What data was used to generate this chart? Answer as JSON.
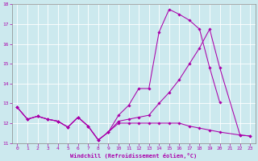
{
  "xlabel": "Windchill (Refroidissement éolien,°C)",
  "bg_color": "#cce9ee",
  "line_color": "#aa00aa",
  "xlim": [
    -0.5,
    23.5
  ],
  "ylim": [
    11,
    18
  ],
  "xticks": [
    0,
    1,
    2,
    3,
    4,
    5,
    6,
    7,
    8,
    9,
    10,
    11,
    12,
    13,
    14,
    15,
    16,
    17,
    18,
    19,
    20,
    21,
    22,
    23
  ],
  "yticks": [
    11,
    12,
    13,
    14,
    15,
    16,
    17,
    18
  ],
  "series": [
    {
      "x": [
        0,
        1,
        2,
        3,
        4,
        5,
        6,
        7,
        8,
        9,
        10,
        11,
        12,
        13,
        14,
        15,
        16,
        17,
        18,
        19,
        20
      ],
      "y": [
        12.8,
        12.2,
        12.35,
        12.2,
        12.1,
        11.8,
        12.3,
        11.85,
        11.15,
        11.55,
        12.4,
        12.9,
        13.75,
        13.75,
        16.6,
        17.75,
        17.5,
        17.2,
        16.75,
        14.8,
        13.05
      ]
    },
    {
      "x": [
        0,
        1,
        2,
        3,
        4,
        5,
        6,
        7,
        8,
        9,
        10,
        11,
        12,
        13,
        14,
        15,
        16,
        17,
        18,
        19,
        20,
        22,
        23
      ],
      "y": [
        12.8,
        12.2,
        12.35,
        12.2,
        12.1,
        11.8,
        12.3,
        11.85,
        11.15,
        11.55,
        12.1,
        12.2,
        12.3,
        12.4,
        13.0,
        13.55,
        14.2,
        15.0,
        15.8,
        16.75,
        14.8,
        11.4,
        11.35
      ]
    },
    {
      "x": [
        0,
        1,
        2,
        3,
        4,
        5,
        6,
        7,
        8,
        9,
        10,
        11,
        12,
        13,
        14,
        15,
        16,
        17,
        18,
        19,
        20,
        22,
        23
      ],
      "y": [
        12.8,
        12.2,
        12.35,
        12.2,
        12.1,
        11.8,
        12.3,
        11.85,
        11.15,
        11.55,
        12.0,
        12.0,
        12.0,
        12.0,
        12.0,
        12.0,
        12.0,
        11.85,
        11.75,
        11.65,
        11.55,
        11.4,
        11.35
      ]
    }
  ]
}
